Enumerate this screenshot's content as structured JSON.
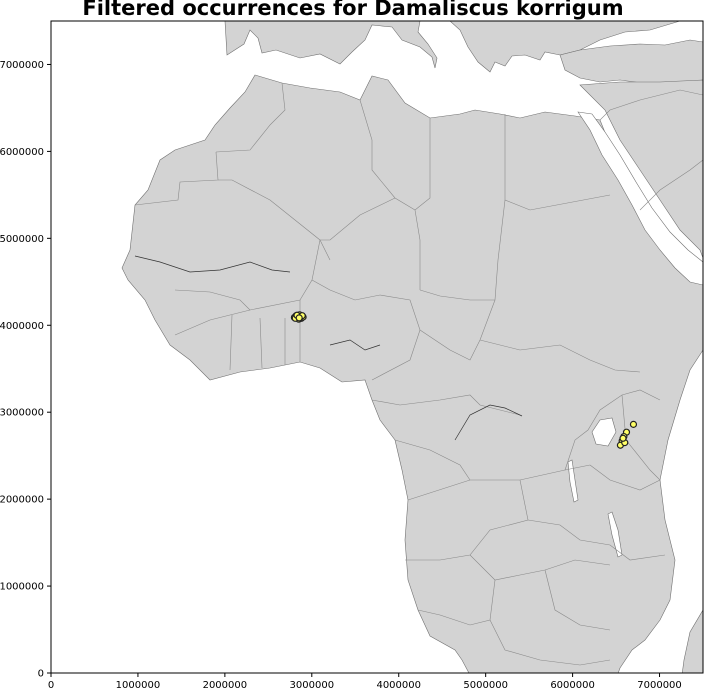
{
  "title": "Filtered occurrences for Damaliscus korrigum",
  "colors": {
    "land": "#d3d3d3",
    "border": "#8a8a8a",
    "coast": "#707070",
    "sea": "#ffffff",
    "point_fill": "#ffff66",
    "point_edge": "#222222"
  },
  "map": {
    "x_range": [
      0,
      7500000
    ],
    "y_range": [
      0,
      7500000
    ],
    "x_ticks": [
      {
        "value": 0,
        "label": "0"
      },
      {
        "value": 1000000,
        "label": "1000000"
      },
      {
        "value": 2000000,
        "label": "2000000"
      },
      {
        "value": 3000000,
        "label": "3000000"
      },
      {
        "value": 4000000,
        "label": "4000000"
      },
      {
        "value": 5000000,
        "label": "5000000"
      },
      {
        "value": 6000000,
        "label": "6000000"
      },
      {
        "value": 7000000,
        "label": "7000000"
      }
    ],
    "y_ticks": [
      {
        "value": 0,
        "label": "0"
      },
      {
        "value": 1000000,
        "label": "1000000"
      },
      {
        "value": 2000000,
        "label": "2000000"
      },
      {
        "value": 3000000,
        "label": "3000000"
      },
      {
        "value": 4000000,
        "label": "4000000"
      },
      {
        "value": 5000000,
        "label": "5000000"
      },
      {
        "value": 6000000,
        "label": "6000000"
      },
      {
        "value": 7000000,
        "label": "7000000"
      }
    ],
    "occurrences": [
      [
        2800000,
        4090000
      ],
      [
        2820000,
        4110000
      ],
      [
        2840000,
        4100000
      ],
      [
        2860000,
        4120000
      ],
      [
        2880000,
        4080000
      ],
      [
        2850000,
        4070000
      ],
      [
        2870000,
        4100000
      ],
      [
        2810000,
        4080000
      ],
      [
        2900000,
        4095000
      ],
      [
        2830000,
        4115000
      ],
      [
        2890000,
        4110000
      ],
      [
        2855000,
        4085000
      ],
      [
        6700000,
        2860000
      ],
      [
        6620000,
        2770000
      ],
      [
        6590000,
        2720000
      ],
      [
        6570000,
        2670000
      ],
      [
        6550000,
        2620000
      ],
      [
        6600000,
        2650000
      ],
      [
        6580000,
        2700000
      ]
    ]
  }
}
